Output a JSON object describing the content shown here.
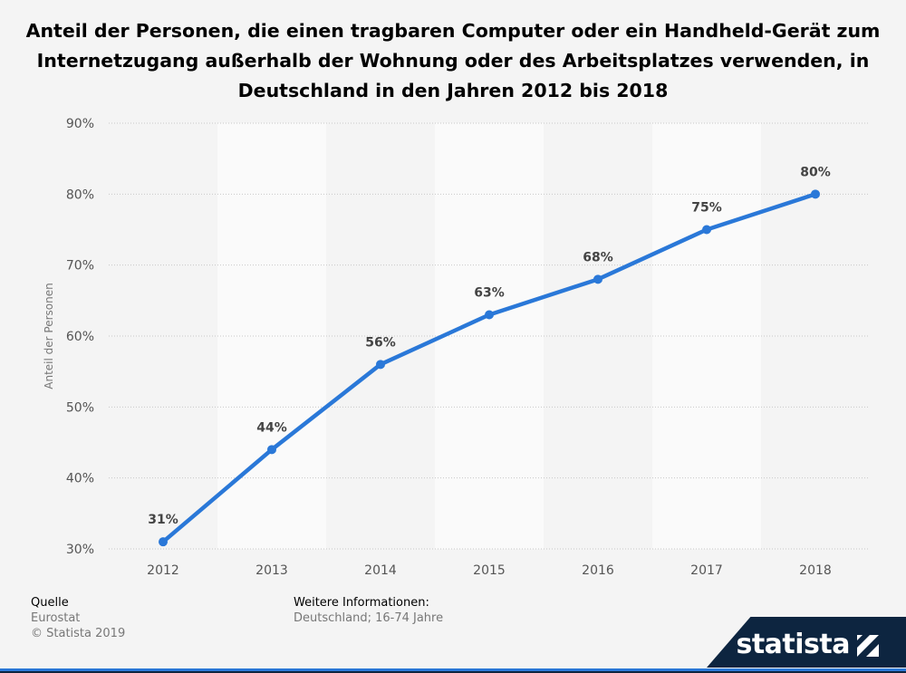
{
  "title": "Anteil der Personen, die einen tragbaren Computer oder ein Handheld-Gerät zum Internetzugang außerhalb der Wohnung oder des Arbeitsplatzes verwenden, in Deutschland in den Jahren 2012 bis 2018",
  "footer": {
    "source_label": "Quelle",
    "source_value": "Eurostat",
    "copyright": "© Statista 2019",
    "info_label": "Weitere Informationen:",
    "info_value": "Deutschland; 16-74 Jahre"
  },
  "brand": {
    "name": "statista",
    "icon": "statista-logo-icon"
  },
  "colors": {
    "line": "#2a78d8",
    "stripe_light": "#fafafa",
    "stripe_dark": "#f4f4f4",
    "brand_dark": "#0d2540"
  },
  "chart_data": {
    "type": "line",
    "categories": [
      "2012",
      "2013",
      "2014",
      "2015",
      "2016",
      "2017",
      "2018"
    ],
    "series": [
      {
        "values": [
          31,
          44,
          56,
          63,
          68,
          75,
          80
        ]
      }
    ],
    "data_labels": [
      "31%",
      "44%",
      "56%",
      "63%",
      "68%",
      "75%",
      "80%"
    ],
    "ylabel": "Anteil der Personen",
    "xlabel": "",
    "ylim": [
      30,
      90
    ],
    "yticks": [
      30,
      40,
      50,
      60,
      70,
      80,
      90
    ],
    "ytick_labels": [
      "30%",
      "40%",
      "50%",
      "60%",
      "70%",
      "80%",
      "90%"
    ],
    "grid": true,
    "alternating_column_bands": true
  }
}
